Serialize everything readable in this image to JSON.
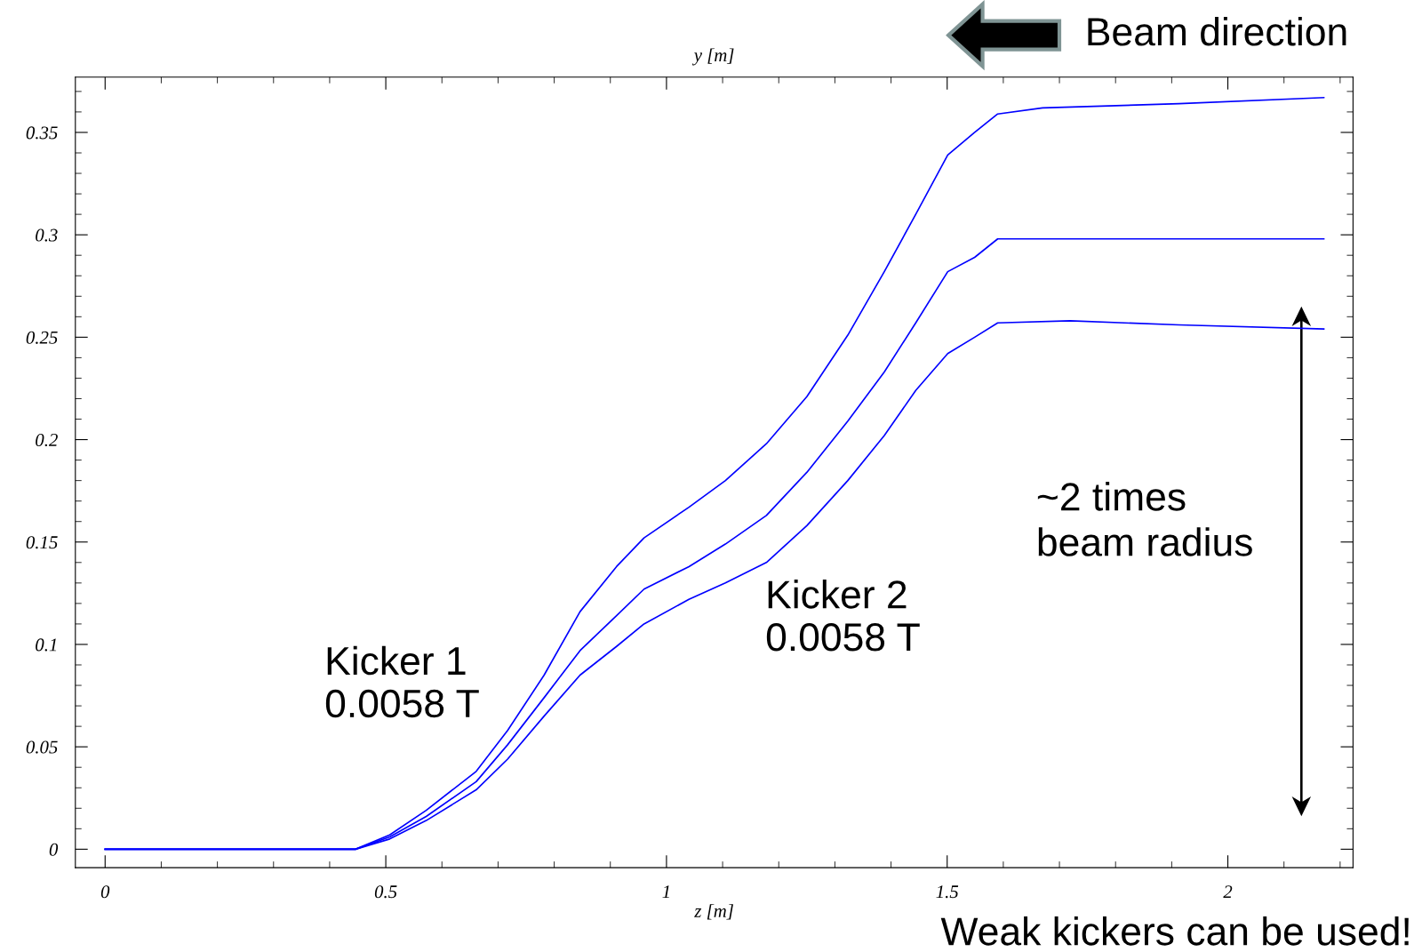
{
  "chart_data": {
    "type": "line",
    "xlabel": "z [m]",
    "ylabel": "y [m]",
    "annotations": [
      "Kicker 1\n0.0058 T",
      "Kicker 2\n0.0058 T",
      "~2 times\nbeam radius",
      "Beam direction",
      "Weak kickers can be used!"
    ],
    "series": [
      {
        "color": "#0000ff",
        "x": [
          0,
          0.446,
          0.507,
          0.572,
          0.661,
          0.717,
          0.782,
          0.846,
          0.911,
          0.96,
          1.04,
          1.105,
          1.178,
          1.25,
          1.323,
          1.388,
          1.444,
          1.501,
          1.549,
          1.59,
          1.67,
          1.913,
          2.171
        ],
        "values": [
          0,
          0,
          0.007,
          0.019,
          0.038,
          0.058,
          0.085,
          0.116,
          0.138,
          0.152,
          0.167,
          0.18,
          0.198,
          0.221,
          0.251,
          0.282,
          0.31,
          0.339,
          0.35,
          0.359,
          0.362,
          0.364,
          0.367
        ]
      },
      {
        "color": "#0000ff",
        "x": [
          0,
          0.446,
          0.507,
          0.572,
          0.661,
          0.717,
          0.782,
          0.846,
          0.911,
          0.96,
          1.04,
          1.105,
          1.178,
          1.25,
          1.323,
          1.388,
          1.444,
          1.501,
          1.549,
          1.59,
          2.171
        ],
        "values": [
          0,
          0,
          0.006,
          0.016,
          0.033,
          0.051,
          0.074,
          0.097,
          0.114,
          0.127,
          0.138,
          0.149,
          0.163,
          0.184,
          0.209,
          0.233,
          0.257,
          0.282,
          0.289,
          0.298,
          0.298
        ]
      },
      {
        "color": "#0000ff",
        "x": [
          0,
          0.446,
          0.507,
          0.572,
          0.661,
          0.717,
          0.782,
          0.846,
          0.911,
          0.96,
          1.04,
          1.105,
          1.178,
          1.25,
          1.323,
          1.388,
          1.444,
          1.501,
          1.549,
          1.59,
          1.719,
          1.913,
          2.171
        ],
        "values": [
          0,
          0,
          0.005,
          0.014,
          0.029,
          0.044,
          0.065,
          0.085,
          0.099,
          0.11,
          0.122,
          0.13,
          0.14,
          0.158,
          0.18,
          0.202,
          0.224,
          0.242,
          0.25,
          0.257,
          0.258,
          0.256,
          0.254
        ]
      }
    ],
    "xlim": [
      -0.053,
      2.223
    ],
    "ylim": [
      -0.009,
      0.377
    ],
    "xticks": [
      0,
      0.5,
      1,
      1.5,
      2
    ],
    "yticks": [
      0,
      0.05,
      0.1,
      0.15,
      0.2,
      0.25,
      0.3,
      0.35
    ],
    "grid": false,
    "legend": false,
    "marker": "none",
    "line_style": "solid"
  }
}
